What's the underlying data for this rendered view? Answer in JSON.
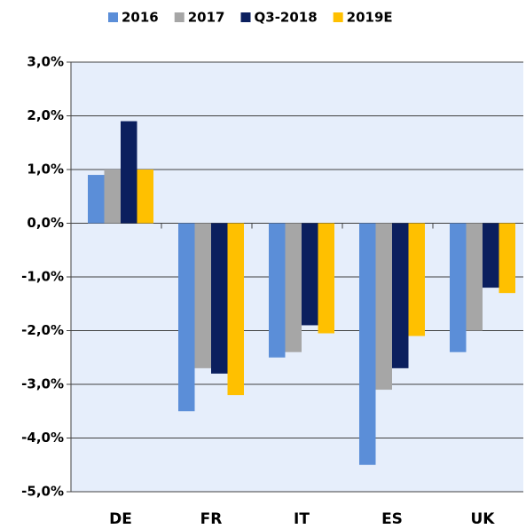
{
  "chart_data": {
    "type": "bar",
    "categories": [
      "DE",
      "FR",
      "IT",
      "ES",
      "UK"
    ],
    "series": [
      {
        "name": "2016",
        "color": "#5b8ed8",
        "values": [
          0.9,
          -3.5,
          -2.5,
          -4.5,
          -2.4
        ]
      },
      {
        "name": "2017",
        "color": "#a6a6a6",
        "values": [
          1.0,
          -2.7,
          -2.4,
          -3.1,
          -2.0
        ]
      },
      {
        "name": "Q3-2018",
        "color": "#0b1f5e",
        "values": [
          1.9,
          -2.8,
          -1.9,
          -2.7,
          -1.2
        ]
      },
      {
        "name": "2019E",
        "color": "#ffc000",
        "values": [
          1.0,
          -3.2,
          -2.05,
          -2.1,
          -1.3
        ]
      }
    ],
    "ylim": [
      -5,
      3
    ],
    "yticks": [
      {
        "value": 3,
        "label": "3,0%"
      },
      {
        "value": 2,
        "label": "2,0%"
      },
      {
        "value": 1,
        "label": "1,0%"
      },
      {
        "value": 0,
        "label": "0,0%"
      },
      {
        "value": -1,
        "label": "-1,0%"
      },
      {
        "value": -2,
        "label": "-2,0%"
      },
      {
        "value": -3,
        "label": "-3,0%"
      },
      {
        "value": -4,
        "label": "-4,0%"
      },
      {
        "value": -5,
        "label": "-5,0%"
      }
    ],
    "grid": true,
    "legend": "top"
  }
}
